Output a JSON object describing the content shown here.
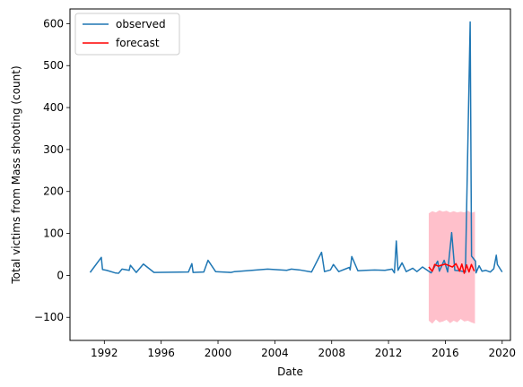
{
  "chart_data": {
    "type": "line",
    "title": "",
    "xlabel": "Date",
    "ylabel": "Total victims from Mass shooting (count)",
    "xlim": [
      "1989-08-01",
      "2020-08-01"
    ],
    "ylim": [
      -155,
      635
    ],
    "xticks": [
      "1992",
      "1996",
      "2000",
      "2004",
      "2008",
      "2012",
      "2016",
      "2020"
    ],
    "yticks": [
      -100,
      0,
      100,
      200,
      300,
      400,
      500,
      600
    ],
    "grid": false,
    "legend": {
      "location": "upper-left",
      "entries": [
        "observed",
        "forecast"
      ]
    },
    "series": [
      {
        "name": "observed",
        "color": "#1f77b4",
        "points": [
          [
            "1991-01-01",
            7
          ],
          [
            "1991-10-15",
            43
          ],
          [
            "1991-11-15",
            14
          ],
          [
            "1992-03-01",
            12
          ],
          [
            "1992-10-01",
            6
          ],
          [
            "1993-01-01",
            5
          ],
          [
            "1993-04-01",
            15
          ],
          [
            "1993-10-01",
            12
          ],
          [
            "1993-11-01",
            24
          ],
          [
            "1994-04-01",
            7
          ],
          [
            "1994-10-01",
            27
          ],
          [
            "1995-07-01",
            7
          ],
          [
            "1997-12-01",
            8
          ],
          [
            "1998-03-01",
            28
          ],
          [
            "1998-04-01",
            7
          ],
          [
            "1999-01-01",
            8
          ],
          [
            "1999-04-20",
            36
          ],
          [
            "1999-11-01",
            9
          ],
          [
            "2000-12-01",
            7
          ],
          [
            "2001-03-01",
            9
          ],
          [
            "2002-01-01",
            11
          ],
          [
            "2003-07-01",
            15
          ],
          [
            "2004-11-01",
            12
          ],
          [
            "2005-03-01",
            15
          ],
          [
            "2005-10-01",
            13
          ],
          [
            "2006-08-01",
            8
          ],
          [
            "2007-04-16",
            55
          ],
          [
            "2007-07-01",
            9
          ],
          [
            "2007-12-01",
            13
          ],
          [
            "2008-02-14",
            26
          ],
          [
            "2008-07-01",
            9
          ],
          [
            "2009-04-01",
            19
          ],
          [
            "2009-04-20",
            13
          ],
          [
            "2009-06-01",
            45
          ],
          [
            "2009-11-05",
            11
          ],
          [
            "2010-06-01",
            12
          ],
          [
            "2011-01-08",
            13
          ],
          [
            "2011-10-01",
            12
          ],
          [
            "2012-04-01",
            15
          ],
          [
            "2012-06-01",
            6
          ],
          [
            "2012-07-20",
            82
          ],
          [
            "2012-09-01",
            12
          ],
          [
            "2012-12-14",
            30
          ],
          [
            "2013-04-01",
            9
          ],
          [
            "2013-09-16",
            17
          ],
          [
            "2014-01-01",
            9
          ],
          [
            "2014-05-23",
            20
          ],
          [
            "2015-01-01",
            6
          ],
          [
            "2015-06-17",
            34
          ],
          [
            "2015-08-01",
            10
          ],
          [
            "2015-12-02",
            36
          ],
          [
            "2016-03-01",
            8
          ],
          [
            "2016-06-12",
            102
          ],
          [
            "2016-09-01",
            12
          ],
          [
            "2017-01-06",
            11
          ],
          [
            "2017-06-01",
            8
          ],
          [
            "2017-10-01",
            604
          ],
          [
            "2017-11-05",
            46
          ],
          [
            "2018-02-14",
            34
          ],
          [
            "2018-03-01",
            6
          ],
          [
            "2018-05-18",
            23
          ],
          [
            "2018-08-01",
            10
          ],
          [
            "2018-11-07",
            12
          ],
          [
            "2019-03-01",
            8
          ],
          [
            "2019-05-31",
            16
          ],
          [
            "2019-08-03",
            48
          ],
          [
            "2019-08-31",
            26
          ],
          [
            "2020-01-01",
            8
          ]
        ]
      },
      {
        "name": "forecast",
        "color": "#ff0000",
        "points": [
          [
            "2014-11-01",
            20
          ],
          [
            "2015-02-01",
            10
          ],
          [
            "2015-04-01",
            26
          ],
          [
            "2015-07-01",
            22
          ],
          [
            "2016-01-01",
            27
          ],
          [
            "2016-07-01",
            20
          ],
          [
            "2016-10-01",
            28
          ],
          [
            "2017-01-01",
            10
          ],
          [
            "2017-03-01",
            27
          ],
          [
            "2017-05-01",
            5
          ],
          [
            "2017-07-01",
            25
          ],
          [
            "2017-09-01",
            8
          ],
          [
            "2017-11-01",
            26
          ],
          [
            "2018-01-15",
            10
          ]
        ]
      }
    ],
    "confidence_band": {
      "color": "#ffc0cb",
      "x_start": "2014-11-01",
      "x_end": "2018-02-01",
      "upper": [
        148,
        153,
        150,
        155,
        152,
        154,
        150,
        153,
        150,
        152,
        150,
        154,
        149,
        152
      ],
      "lower": [
        -108,
        -115,
        -105,
        -112,
        -110,
        -106,
        -114,
        -108,
        -112,
        -104,
        -110,
        -108,
        -112,
        -115
      ]
    }
  }
}
